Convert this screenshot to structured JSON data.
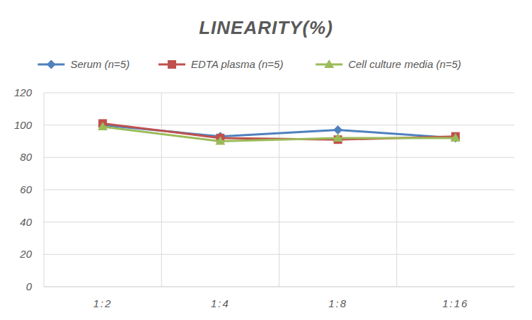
{
  "chart_data": {
    "type": "line",
    "title": "LINEARITY(%)",
    "categories": [
      "1:2",
      "1:4",
      "1:8",
      "1:16"
    ],
    "series": [
      {
        "name": "Serum (n=5)",
        "color": "#4f81bd",
        "marker": "diamond",
        "values": [
          100,
          93,
          97,
          92
        ]
      },
      {
        "name": "EDTA plasma (n=5)",
        "color": "#c0504d",
        "marker": "square",
        "values": [
          101,
          92,
          91,
          93
        ]
      },
      {
        "name": "Cell culture media (n=5)",
        "color": "#9bbb59",
        "marker": "triangle",
        "values": [
          99,
          90,
          92,
          92
        ]
      }
    ],
    "ylim": [
      0,
      120
    ],
    "yticks": [
      0,
      20,
      40,
      60,
      80,
      100,
      120
    ],
    "grid": true,
    "legend": "top"
  }
}
